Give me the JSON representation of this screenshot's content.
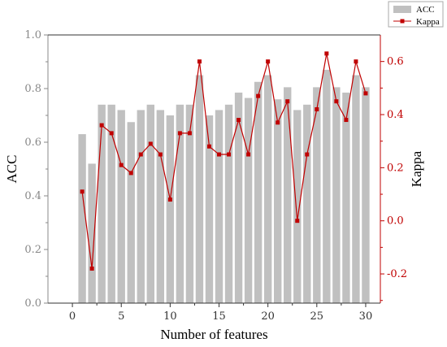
{
  "chart_data": {
    "type": "bar",
    "title": "",
    "xlabel": "Number of features",
    "ylabel": "ACC",
    "y2label": "Kappa",
    "x": [
      1,
      2,
      3,
      4,
      5,
      6,
      7,
      8,
      9,
      10,
      11,
      12,
      13,
      14,
      15,
      16,
      17,
      18,
      19,
      20,
      21,
      22,
      23,
      24,
      25,
      26,
      27,
      28,
      29,
      30
    ],
    "xlim": [
      -2.5,
      31.5
    ],
    "xticks": [
      0,
      5,
      10,
      15,
      20,
      25,
      30
    ],
    "ylim": [
      0.0,
      1.0
    ],
    "yticks": [
      "0.0",
      "0.2",
      "0.4",
      "0.6",
      "0.8",
      "1.0"
    ],
    "y2lim": [
      -0.31,
      0.7
    ],
    "y2ticks": [
      "-0.2",
      "0.0",
      "0.2",
      "0.4",
      "0.6"
    ],
    "grid": false,
    "legend_position": "top-right",
    "series": [
      {
        "name": "ACC",
        "type": "bar",
        "axis": "left",
        "color": "#c0c0c0",
        "values": [
          0.63,
          0.52,
          0.74,
          0.74,
          0.72,
          0.675,
          0.72,
          0.74,
          0.72,
          0.7,
          0.74,
          0.74,
          0.85,
          0.7,
          0.72,
          0.74,
          0.785,
          0.765,
          0.825,
          0.85,
          0.76,
          0.805,
          0.72,
          0.74,
          0.805,
          0.87,
          0.805,
          0.785,
          0.85,
          0.805
        ]
      },
      {
        "name": "Kappa",
        "type": "line",
        "axis": "right",
        "color": "#c00000",
        "values": [
          0.11,
          -0.18,
          0.36,
          0.33,
          0.21,
          0.18,
          0.25,
          0.29,
          0.25,
          0.08,
          0.33,
          0.33,
          0.6,
          0.28,
          0.25,
          0.25,
          0.38,
          0.25,
          0.47,
          0.6,
          0.37,
          0.45,
          0.0,
          0.25,
          0.42,
          0.63,
          0.45,
          0.38,
          0.6,
          0.48
        ]
      }
    ]
  }
}
